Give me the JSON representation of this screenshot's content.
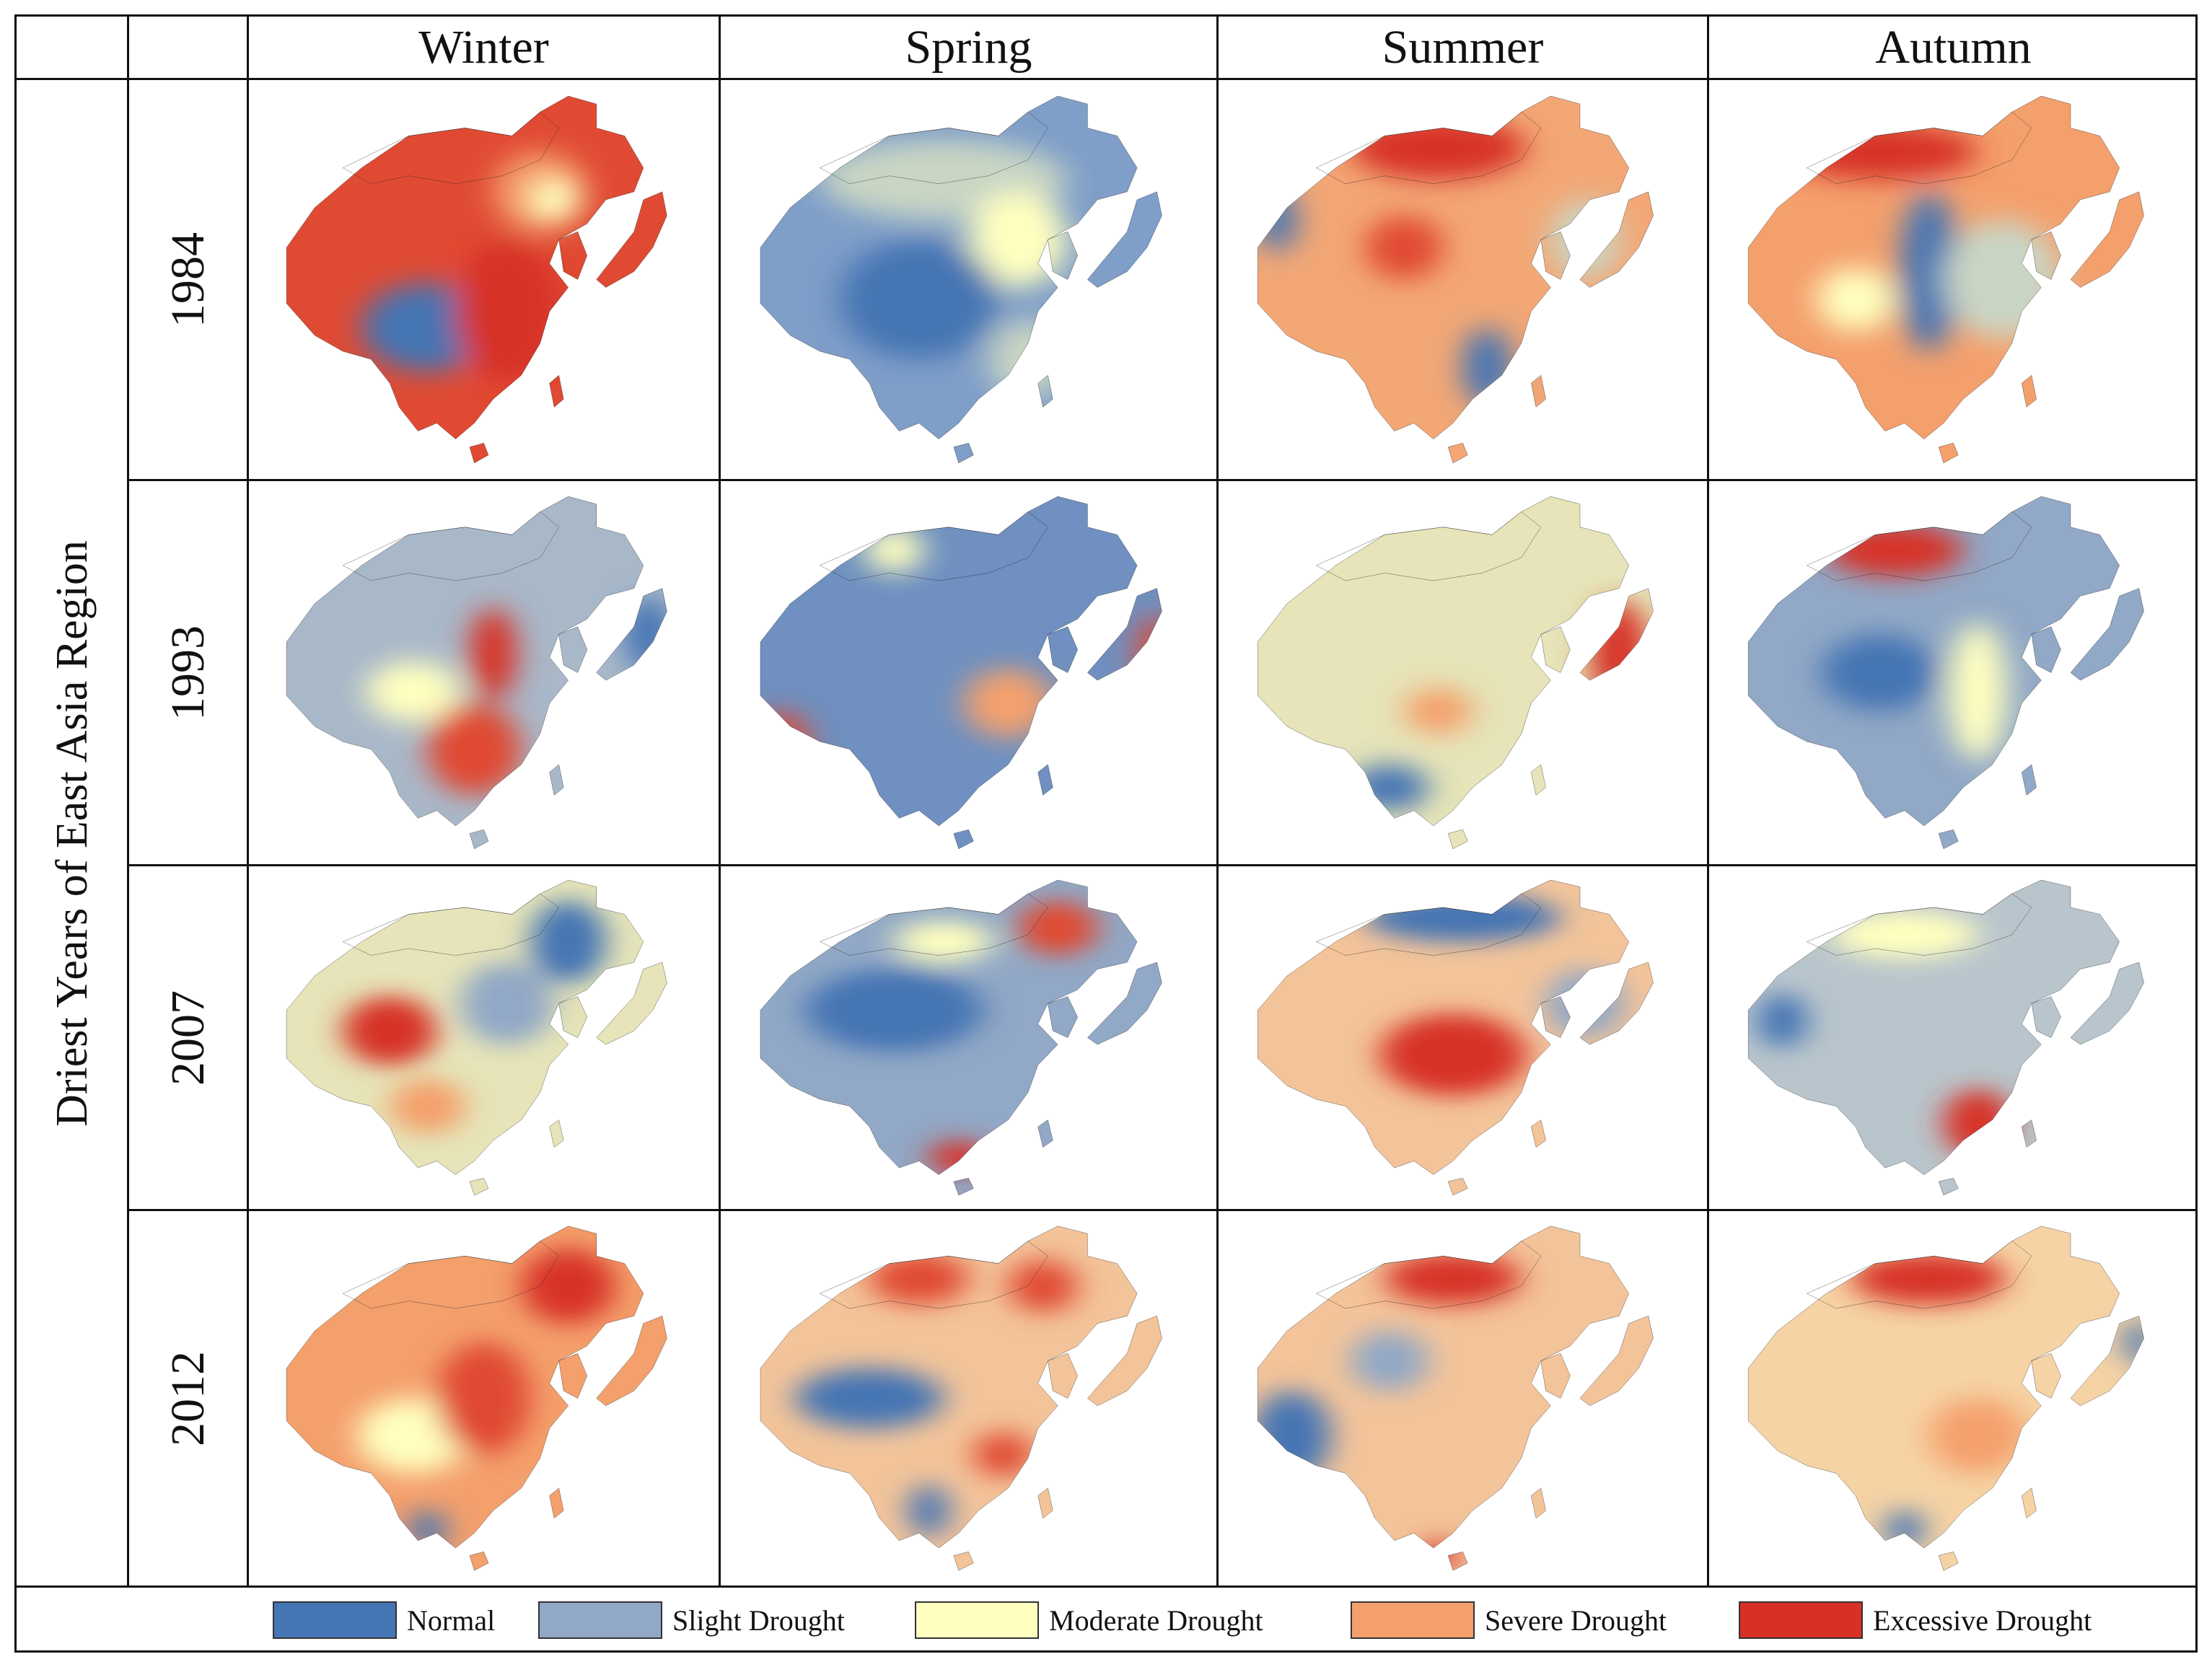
{
  "figure": {
    "side_label": "Driest Years of  East Asia Region",
    "seasons": [
      "Winter",
      "Spring",
      "Summer",
      "Autumn"
    ],
    "years": [
      "1984",
      "1993",
      "2007",
      "2012"
    ]
  },
  "legend": [
    {
      "label": "Normal",
      "color": "#4575b4"
    },
    {
      "label": "Slight  Drought",
      "color": "#91a8c6"
    },
    {
      "label": "Moderate Drought",
      "color": "#ffffbf"
    },
    {
      "label": "Severe Drought",
      "color": "#f4a06c"
    },
    {
      "label": "Excessive Drought",
      "color": "#d73027"
    }
  ],
  "maps": {
    "1984": {
      "Winter": {
        "base": "#e04a33",
        "blobs": [
          [
            "#4575b4",
            0.38,
            0.62,
            0.14,
            0.11
          ],
          [
            "#f4a06c",
            0.62,
            0.28,
            0.1,
            0.1
          ],
          [
            "#ffffbf",
            0.65,
            0.3,
            0.05,
            0.05
          ],
          [
            "#d73027",
            0.55,
            0.58,
            0.11,
            0.18
          ]
        ]
      },
      "Spring": {
        "base": "#7f9ec8",
        "blobs": [
          [
            "#c9d6c4",
            0.45,
            0.25,
            0.25,
            0.1
          ],
          [
            "#ffffbf",
            0.6,
            0.4,
            0.1,
            0.12
          ],
          [
            "#4575b4",
            0.4,
            0.55,
            0.16,
            0.15
          ],
          [
            "#c9d6c4",
            0.62,
            0.7,
            0.08,
            0.1
          ]
        ]
      },
      "Summer": {
        "base": "#f3a775",
        "blobs": [
          [
            "#d73027",
            0.45,
            0.17,
            0.18,
            0.08
          ],
          [
            "#e04a33",
            0.38,
            0.42,
            0.08,
            0.08
          ],
          [
            "#4575b4",
            0.55,
            0.72,
            0.05,
            0.1
          ],
          [
            "#c9d6c4",
            0.75,
            0.4,
            0.07,
            0.1
          ],
          [
            "#4575b4",
            0.12,
            0.35,
            0.04,
            0.08
          ]
        ]
      },
      "Autumn": {
        "base": "#f4a06c",
        "blobs": [
          [
            "#d73027",
            0.35,
            0.18,
            0.2,
            0.07
          ],
          [
            "#4575b4",
            0.45,
            0.48,
            0.06,
            0.2
          ],
          [
            "#c9d6c4",
            0.6,
            0.5,
            0.12,
            0.15
          ],
          [
            "#ffffbf",
            0.3,
            0.55,
            0.08,
            0.08
          ]
        ]
      }
    },
    "1993": {
      "Winter": {
        "base": "#a9b8c9",
        "blobs": [
          [
            "#d73027",
            0.52,
            0.45,
            0.05,
            0.12
          ],
          [
            "#e04a33",
            0.48,
            0.7,
            0.1,
            0.12
          ],
          [
            "#ffffbf",
            0.35,
            0.55,
            0.1,
            0.08
          ],
          [
            "#4575b4",
            0.85,
            0.4,
            0.05,
            0.1
          ]
        ]
      },
      "Spring": {
        "base": "#6f90c0",
        "blobs": [
          [
            "#e04a33",
            0.12,
            0.7,
            0.06,
            0.1
          ],
          [
            "#f4a06c",
            0.58,
            0.58,
            0.09,
            0.09
          ],
          [
            "#ffffbf",
            0.35,
            0.18,
            0.06,
            0.06
          ],
          [
            "#e04a33",
            0.88,
            0.45,
            0.04,
            0.1
          ]
        ]
      },
      "Summer": {
        "base": "#e6e4b8",
        "blobs": [
          [
            "#f4a06c",
            0.45,
            0.6,
            0.07,
            0.06
          ],
          [
            "#4575b4",
            0.35,
            0.8,
            0.08,
            0.06
          ],
          [
            "#d73027",
            0.82,
            0.45,
            0.06,
            0.14
          ]
        ]
      },
      "Autumn": {
        "base": "#91a8c6",
        "blobs": [
          [
            "#d73027",
            0.38,
            0.18,
            0.14,
            0.07
          ],
          [
            "#ffffbf",
            0.55,
            0.55,
            0.06,
            0.18
          ],
          [
            "#4575b4",
            0.35,
            0.5,
            0.12,
            0.1
          ]
        ]
      }
    },
    "2007": {
      "Winter": {
        "base": "#e6e4b8",
        "blobs": [
          [
            "#d73027",
            0.3,
            0.48,
            0.1,
            0.1
          ],
          [
            "#4575b4",
            0.68,
            0.22,
            0.08,
            0.12
          ],
          [
            "#f4a06c",
            0.38,
            0.7,
            0.08,
            0.08
          ],
          [
            "#91a8c6",
            0.55,
            0.4,
            0.1,
            0.12
          ]
        ]
      },
      "Spring": {
        "base": "#91a8c6",
        "blobs": [
          [
            "#4575b4",
            0.35,
            0.42,
            0.18,
            0.12
          ],
          [
            "#e04a33",
            0.68,
            0.18,
            0.08,
            0.08
          ],
          [
            "#d73027",
            0.48,
            0.85,
            0.06,
            0.05
          ],
          [
            "#ffffbf",
            0.45,
            0.22,
            0.1,
            0.06
          ]
        ]
      },
      "Summer": {
        "base": "#f3c49a",
        "blobs": [
          [
            "#4575b4",
            0.5,
            0.15,
            0.2,
            0.07
          ],
          [
            "#d73027",
            0.48,
            0.55,
            0.15,
            0.12
          ],
          [
            "#91a8c6",
            0.75,
            0.4,
            0.08,
            0.1
          ]
        ]
      },
      "Autumn": {
        "base": "#b9c5cc",
        "blobs": [
          [
            "#d73027",
            0.55,
            0.75,
            0.07,
            0.1
          ],
          [
            "#4575b4",
            0.15,
            0.45,
            0.05,
            0.08
          ],
          [
            "#ffffbf",
            0.4,
            0.2,
            0.15,
            0.07
          ]
        ]
      }
    },
    "2012": {
      "Winter": {
        "base": "#f4a06c",
        "blobs": [
          [
            "#d73027",
            0.68,
            0.2,
            0.1,
            0.1
          ],
          [
            "#ffffbf",
            0.35,
            0.6,
            0.12,
            0.1
          ],
          [
            "#4575b4",
            0.38,
            0.85,
            0.04,
            0.05
          ],
          [
            "#e04a33",
            0.5,
            0.5,
            0.1,
            0.15
          ]
        ]
      },
      "Spring": {
        "base": "#f3c49a",
        "blobs": [
          [
            "#4575b4",
            0.3,
            0.5,
            0.15,
            0.08
          ],
          [
            "#e04a33",
            0.4,
            0.18,
            0.1,
            0.07
          ],
          [
            "#e04a33",
            0.65,
            0.2,
            0.07,
            0.07
          ],
          [
            "#4575b4",
            0.42,
            0.8,
            0.04,
            0.07
          ],
          [
            "#e04a33",
            0.57,
            0.65,
            0.06,
            0.06
          ]
        ]
      },
      "Summer": {
        "base": "#f3c49a",
        "blobs": [
          [
            "#d73027",
            0.48,
            0.18,
            0.14,
            0.07
          ],
          [
            "#4575b4",
            0.15,
            0.6,
            0.08,
            0.12
          ],
          [
            "#91a8c6",
            0.35,
            0.4,
            0.08,
            0.08
          ],
          [
            "#d73027",
            0.45,
            0.92,
            0.04,
            0.04
          ]
        ]
      },
      "Autumn": {
        "base": "#f6d3a5",
        "blobs": [
          [
            "#d73027",
            0.45,
            0.18,
            0.16,
            0.07
          ],
          [
            "#4575b4",
            0.4,
            0.85,
            0.04,
            0.05
          ],
          [
            "#4575b4",
            0.88,
            0.35,
            0.03,
            0.06
          ],
          [
            "#f4a06c",
            0.55,
            0.6,
            0.1,
            0.1
          ]
        ]
      }
    }
  }
}
